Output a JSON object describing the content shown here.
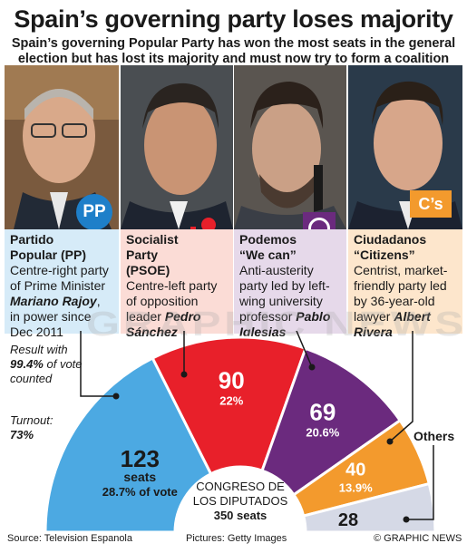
{
  "title": "Spain’s governing party loses majority",
  "subtitle": "Spain’s governing Popular Party has won the most seats in the general election but has lost its majority and must now try to form a coalition",
  "parties": [
    {
      "id": "pp",
      "logo_text": "PP",
      "name_line1": "Partido",
      "name_line2": "Popular (PP)",
      "desc_pre": "Centre-right party of Prime Minister",
      "leader": "Mariano Rajoy",
      "desc_post": ", in power since Dec 2011",
      "color": "#4ca9e2"
    },
    {
      "id": "psoe",
      "logo_text": "PSOE",
      "name_line1": "Socialist",
      "name_line2": "Party",
      "name_line3": "(PSOE)",
      "desc_pre": "Centre-left party of opposition leader",
      "leader": "Pedro Sánchez",
      "desc_post": "",
      "color": "#e8202a"
    },
    {
      "id": "podemos",
      "logo_text": "",
      "name_line1": "Podemos",
      "name_line2": "“We can”",
      "desc_pre": "Anti-austerity party led by left-wing university professor",
      "leader": "Pablo Iglesias",
      "desc_post": "",
      "color": "#6b2a7e"
    },
    {
      "id": "cs",
      "logo_text": "C’s",
      "name_line1": "Ciudadanos",
      "name_line2": "“Citizens”",
      "desc_pre": "Centrist, market-friendly party led by 36-year-old lawyer",
      "leader": "Albert Rivera",
      "desc_post": "",
      "color": "#f39a2d"
    }
  ],
  "result_note": {
    "pre": "Result with",
    "pct": "99.4%",
    "post": "of vote counted"
  },
  "turnout": {
    "label": "Turnout:",
    "value": "73%"
  },
  "others_label": "Others",
  "congress": {
    "line1": "CONGRESO DE",
    "line2": "LOS DIPUTADOS",
    "seats": "350 seats"
  },
  "footer": {
    "source": "Source: Television Espanola",
    "pictures": "Pictures: Getty Images",
    "credit": "© GRAPHIC NEWS"
  },
  "watermark": "GRAPHIC NEWS",
  "chart_data": {
    "type": "hemicycle",
    "total_seats": 350,
    "series": [
      {
        "name": "PP",
        "seats": 123,
        "seats_label": "seats",
        "pct": "28.7% of vote",
        "color": "#4ca9e2"
      },
      {
        "name": "PSOE",
        "seats": 90,
        "pct": "22%",
        "color": "#e8202a"
      },
      {
        "name": "Podemos",
        "seats": 69,
        "pct": "20.6%",
        "color": "#6b2a7e"
      },
      {
        "name": "C’s",
        "seats": 40,
        "pct": "13.9%",
        "color": "#f39a2d"
      },
      {
        "name": "Others",
        "seats": 28,
        "pct": "",
        "color": "#d5d9e6"
      }
    ]
  }
}
